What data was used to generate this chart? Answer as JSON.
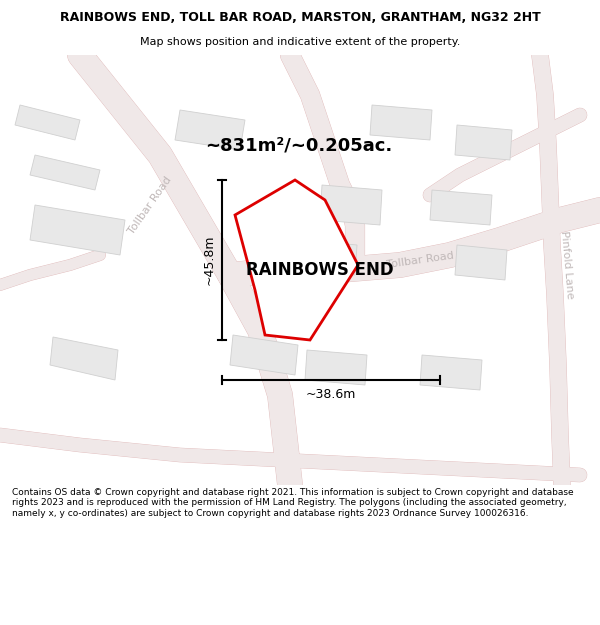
{
  "title_line1": "RAINBOWS END, TOLL BAR ROAD, MARSTON, GRANTHAM, NG32 2HT",
  "title_line2": "Map shows position and indicative extent of the property.",
  "area_label": "~831m²/~0.205ac.",
  "property_name": "RAINBOWS END",
  "dim_vertical": "~45.8m",
  "dim_horizontal": "~38.6m",
  "footer_text": "Contains OS data © Crown copyright and database right 2021. This information is subject to Crown copyright and database rights 2023 and is reproduced with the permission of HM Land Registry. The polygons (including the associated geometry, namely x, y co-ordinates) are subject to Crown copyright and database rights 2023 Ordnance Survey 100026316.",
  "map_bg": "#fafafa",
  "road_fill_color": "#f0e8e8",
  "road_edge_color": "#e0b8b8",
  "building_fill": "#e8e8e8",
  "building_edge": "#d0d0d0",
  "plot_outline_color": "#dd0000",
  "road_label_color": "#c0b8b8",
  "road_label_size": 8,
  "dim_line_color": "#000000",
  "title_fontsize": 9,
  "subtitle_fontsize": 8,
  "area_fontsize": 13,
  "property_fontsize": 12,
  "dim_fontsize": 9,
  "footer_fontsize": 6.5
}
